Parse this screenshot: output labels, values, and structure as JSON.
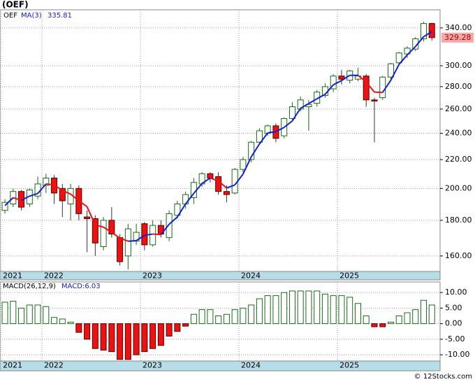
{
  "chart_data": [
    {
      "type": "candlestick",
      "title": "(OEF)",
      "ticker": "OEF",
      "log_scale": true,
      "grid": true,
      "up_color": "#1a6b1a",
      "down_color": "#ee1111",
      "open": [
        186,
        190,
        198,
        190,
        195,
        202,
        207,
        200,
        190,
        200,
        182,
        181,
        165,
        180,
        170,
        160,
        168,
        178,
        166,
        177,
        170,
        183,
        190,
        194,
        203,
        210,
        208,
        198,
        197,
        213,
        220,
        233,
        240,
        246,
        238,
        252,
        260,
        262,
        265,
        272,
        278,
        290,
        286,
        287,
        290,
        268,
        270,
        289,
        303,
        312,
        317,
        328,
        345
      ],
      "high": [
        193,
        200,
        199,
        200,
        208,
        210,
        209,
        203,
        203,
        202,
        186,
        183,
        182,
        188,
        172,
        178,
        178,
        179,
        180,
        180,
        186,
        192,
        198,
        207,
        211,
        211,
        211,
        202,
        214,
        222,
        234,
        244,
        247,
        248,
        253,
        266,
        271,
        268,
        277,
        283,
        292,
        296,
        296,
        298,
        292,
        270,
        290,
        303,
        314,
        320,
        330,
        347,
        346
      ],
      "low": [
        184,
        188,
        186,
        188,
        193,
        197,
        190,
        182,
        180,
        180,
        162,
        160,
        163,
        170,
        155,
        153,
        166,
        163,
        165,
        170,
        168,
        181,
        187,
        190,
        201,
        204,
        196,
        191,
        196,
        211,
        218,
        231,
        238,
        233,
        236,
        250,
        258,
        242,
        262,
        270,
        275,
        282,
        283,
        285,
        262,
        233,
        268,
        286,
        300,
        308,
        315,
        325,
        326
      ],
      "close": [
        191,
        198,
        188,
        199,
        203,
        207,
        197,
        192,
        200,
        184,
        181,
        167,
        180,
        172,
        157,
        175,
        173,
        166,
        177,
        172,
        184,
        190,
        196,
        204,
        210,
        207,
        198,
        196,
        213,
        220,
        233,
        242,
        246,
        236,
        252,
        262,
        268,
        264,
        275,
        280,
        290,
        287,
        295,
        290,
        268,
        267,
        289,
        302,
        313,
        318,
        328,
        345,
        329.28
      ],
      "series": [
        {
          "name": "MA(3)",
          "color": "#1122cc",
          "down_color": "#ee1111",
          "values": [
            189,
            194,
            192.3,
            195,
            196.7,
            203,
            202.3,
            198.7,
            196.3,
            192,
            188.3,
            177.3,
            176,
            173,
            169.7,
            168,
            168.3,
            171.3,
            172,
            171.7,
            177.7,
            182,
            190,
            196.7,
            203.3,
            207,
            205,
            200.3,
            202.3,
            209.7,
            222,
            231.7,
            240.3,
            241.3,
            244.7,
            250,
            260.7,
            264.7,
            269,
            273,
            281.7,
            285.7,
            290.7,
            290.7,
            284.3,
            275,
            274.7,
            286,
            301.3,
            311,
            319.7,
            330.3,
            335.81
          ]
        }
      ],
      "xlim": [
        -0.6,
        53
      ],
      "xticks": [
        {
          "value": -0.5,
          "label": "2021"
        },
        {
          "value": 4.5,
          "label": "2022"
        },
        {
          "value": 16.5,
          "label": "2023"
        },
        {
          "value": 28.5,
          "label": "2024"
        },
        {
          "value": 40.5,
          "label": "2025"
        }
      ],
      "ylim": [
        152,
        361
      ],
      "yticks": [
        {
          "value": 160,
          "label": "160.00"
        },
        {
          "value": 180,
          "label": "180.00"
        },
        {
          "value": 200,
          "label": "200.00"
        },
        {
          "value": 220,
          "label": "220.00"
        },
        {
          "value": 240,
          "label": "240.00"
        },
        {
          "value": 260,
          "label": "260.00"
        },
        {
          "value": 280,
          "label": "280.00"
        },
        {
          "value": 300,
          "label": "300.00"
        },
        {
          "value": 340,
          "label": "340.00"
        }
      ]
    },
    {
      "type": "bar",
      "title": "MACD(26,12,9)",
      "legend": "MACD:6.03",
      "grid": true,
      "up_color": "#1a6b1a",
      "down_color": "#ee1111",
      "values": [
        6.9,
        7.2,
        5,
        6,
        6,
        5.5,
        2,
        1.5,
        0.5,
        -2.8,
        -5,
        -8,
        -8.5,
        -9,
        -11.5,
        -11.5,
        -10,
        -9,
        -8,
        -7,
        -4,
        -2.5,
        -0.8,
        3,
        4.5,
        4.5,
        2.5,
        3,
        4.5,
        5,
        6,
        8,
        9,
        9,
        10,
        10.5,
        10.5,
        10.5,
        10.5,
        9.5,
        9,
        9,
        8.5,
        6.5,
        2.5,
        -1,
        -1,
        0.5,
        2.5,
        3.5,
        4.5,
        7.5,
        6
      ],
      "ylim": [
        -12,
        13.4
      ],
      "yticks": [
        {
          "value": -10,
          "label": "-10.00"
        },
        {
          "value": -5,
          "label": "-5.00"
        },
        {
          "value": 0,
          "label": "0.00"
        },
        {
          "value": 5,
          "label": "5.00"
        },
        {
          "value": 10,
          "label": "10.00"
        }
      ]
    }
  ],
  "footer": "© 12Stocks.com"
}
